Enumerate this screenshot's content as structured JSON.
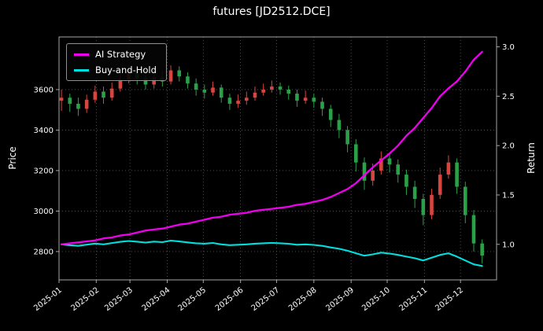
{
  "title": "futures [JD2512.DCE]",
  "legend": {
    "items": [
      {
        "label": "AI Strategy",
        "color": "#ee00ee"
      },
      {
        "label": "Buy-and-Hold",
        "color": "#00dede"
      }
    ]
  },
  "price_axis": {
    "label": "Price",
    "ticks": [
      2800,
      3000,
      3200,
      3400,
      3600
    ]
  },
  "return_axis": {
    "label": "Return",
    "ticks": [
      1.0,
      1.5,
      2.0,
      2.5,
      3.0
    ]
  },
  "x_axis": {
    "ticks": [
      "2025-01",
      "2025-02",
      "2025-03",
      "2025-04",
      "2025-05",
      "2025-06",
      "2025-07",
      "2025-08",
      "2025-09",
      "2025-10",
      "2025-11",
      "2025-12"
    ],
    "tick_rotation": -38
  },
  "colors": {
    "background": "#000000",
    "text": "#ffffff",
    "grid": "#565656",
    "spine": "#a6a6a6",
    "candle_up": "#d6453f",
    "candle_down": "#2aa148"
  },
  "chart_data": {
    "type": "candlestick",
    "title": "futures [JD2512.DCE]",
    "xlabel": "",
    "ylabel_left": "Price",
    "ylabel_right": "Return",
    "legend_position": "upper left",
    "grid": "dotted",
    "x_domain": [
      "2025-01-01",
      "2025-12-31"
    ],
    "price_ylim": [
      2660,
      3860
    ],
    "return_ylim": [
      0.64,
      3.1
    ],
    "dates": [
      "2025-01-03",
      "2025-01-10",
      "2025-01-17",
      "2025-01-24",
      "2025-01-31",
      "2025-02-07",
      "2025-02-14",
      "2025-02-21",
      "2025-02-28",
      "2025-03-07",
      "2025-03-14",
      "2025-03-21",
      "2025-03-28",
      "2025-04-04",
      "2025-04-11",
      "2025-04-18",
      "2025-04-25",
      "2025-05-02",
      "2025-05-09",
      "2025-05-16",
      "2025-05-23",
      "2025-05-30",
      "2025-06-06",
      "2025-06-13",
      "2025-06-20",
      "2025-06-27",
      "2025-07-04",
      "2025-07-11",
      "2025-07-18",
      "2025-07-25",
      "2025-08-01",
      "2025-08-08",
      "2025-08-15",
      "2025-08-22",
      "2025-08-29",
      "2025-09-05",
      "2025-09-12",
      "2025-09-19",
      "2025-09-26",
      "2025-10-03",
      "2025-10-10",
      "2025-10-17",
      "2025-10-24",
      "2025-10-31",
      "2025-11-07",
      "2025-11-14",
      "2025-11-21",
      "2025-11-28",
      "2025-12-05",
      "2025-12-12",
      "2025-12-19"
    ],
    "ohlc": [
      [
        3545,
        3600,
        3495,
        3560
      ],
      [
        3560,
        3580,
        3490,
        3530
      ],
      [
        3530,
        3560,
        3470,
        3505
      ],
      [
        3505,
        3575,
        3485,
        3550
      ],
      [
        3550,
        3620,
        3535,
        3590
      ],
      [
        3590,
        3615,
        3530,
        3560
      ],
      [
        3560,
        3635,
        3545,
        3605
      ],
      [
        3605,
        3680,
        3590,
        3650
      ],
      [
        3650,
        3700,
        3630,
        3680
      ],
      [
        3680,
        3705,
        3625,
        3655
      ],
      [
        3655,
        3690,
        3600,
        3625
      ],
      [
        3625,
        3680,
        3605,
        3660
      ],
      [
        3660,
        3695,
        3615,
        3640
      ],
      [
        3640,
        3720,
        3625,
        3695
      ],
      [
        3695,
        3715,
        3640,
        3665
      ],
      [
        3665,
        3685,
        3605,
        3630
      ],
      [
        3630,
        3655,
        3570,
        3600
      ],
      [
        3600,
        3625,
        3555,
        3585
      ],
      [
        3585,
        3640,
        3570,
        3610
      ],
      [
        3610,
        3625,
        3535,
        3560
      ],
      [
        3560,
        3580,
        3500,
        3530
      ],
      [
        3530,
        3575,
        3510,
        3545
      ],
      [
        3545,
        3590,
        3525,
        3560
      ],
      [
        3560,
        3615,
        3545,
        3585
      ],
      [
        3585,
        3630,
        3570,
        3600
      ],
      [
        3600,
        3645,
        3585,
        3615
      ],
      [
        3615,
        3635,
        3575,
        3600
      ],
      [
        3600,
        3620,
        3550,
        3580
      ],
      [
        3580,
        3600,
        3515,
        3545
      ],
      [
        3545,
        3595,
        3530,
        3560
      ],
      [
        3560,
        3580,
        3510,
        3540
      ],
      [
        3540,
        3560,
        3470,
        3505
      ],
      [
        3505,
        3525,
        3415,
        3450
      ],
      [
        3450,
        3480,
        3360,
        3400
      ],
      [
        3400,
        3420,
        3290,
        3330
      ],
      [
        3330,
        3355,
        3195,
        3240
      ],
      [
        3240,
        3265,
        3105,
        3150
      ],
      [
        3150,
        3235,
        3125,
        3200
      ],
      [
        3200,
        3295,
        3180,
        3260
      ],
      [
        3260,
        3285,
        3190,
        3230
      ],
      [
        3230,
        3255,
        3140,
        3180
      ],
      [
        3180,
        3205,
        3080,
        3120
      ],
      [
        3120,
        3150,
        3015,
        3060
      ],
      [
        3060,
        3085,
        2930,
        2980
      ],
      [
        2980,
        3110,
        2960,
        3080
      ],
      [
        3080,
        3215,
        3060,
        3180
      ],
      [
        3180,
        3275,
        3160,
        3240
      ],
      [
        3240,
        3260,
        3085,
        3120
      ],
      [
        3120,
        3145,
        2940,
        2980
      ],
      [
        2980,
        3005,
        2800,
        2840
      ],
      [
        2840,
        2860,
        2740,
        2780
      ]
    ],
    "series": [
      {
        "name": "AI Strategy",
        "type": "line",
        "axis": "return",
        "values": [
          1.0,
          1.01,
          1.02,
          1.03,
          1.04,
          1.06,
          1.07,
          1.09,
          1.1,
          1.12,
          1.14,
          1.15,
          1.16,
          1.18,
          1.2,
          1.21,
          1.23,
          1.25,
          1.27,
          1.28,
          1.3,
          1.31,
          1.32,
          1.34,
          1.35,
          1.36,
          1.37,
          1.38,
          1.4,
          1.41,
          1.43,
          1.45,
          1.48,
          1.52,
          1.56,
          1.62,
          1.7,
          1.78,
          1.85,
          1.92,
          2.0,
          2.1,
          2.18,
          2.28,
          2.38,
          2.5,
          2.58,
          2.65,
          2.75,
          2.87,
          2.95
        ]
      },
      {
        "name": "Buy-and-Hold",
        "type": "line",
        "axis": "return",
        "values": [
          1.0,
          0.992,
          0.985,
          0.997,
          1.008,
          1.0,
          1.013,
          1.025,
          1.034,
          1.027,
          1.018,
          1.028,
          1.022,
          1.038,
          1.029,
          1.02,
          1.011,
          1.007,
          1.014,
          1.0,
          0.992,
          0.996,
          1.0,
          1.007,
          1.011,
          1.015,
          1.011,
          1.006,
          0.996,
          1.0,
          0.994,
          0.985,
          0.969,
          0.955,
          0.935,
          0.91,
          0.885,
          0.899,
          0.916,
          0.907,
          0.893,
          0.876,
          0.86,
          0.837,
          0.865,
          0.893,
          0.91,
          0.876,
          0.837,
          0.798,
          0.781
        ]
      }
    ]
  }
}
